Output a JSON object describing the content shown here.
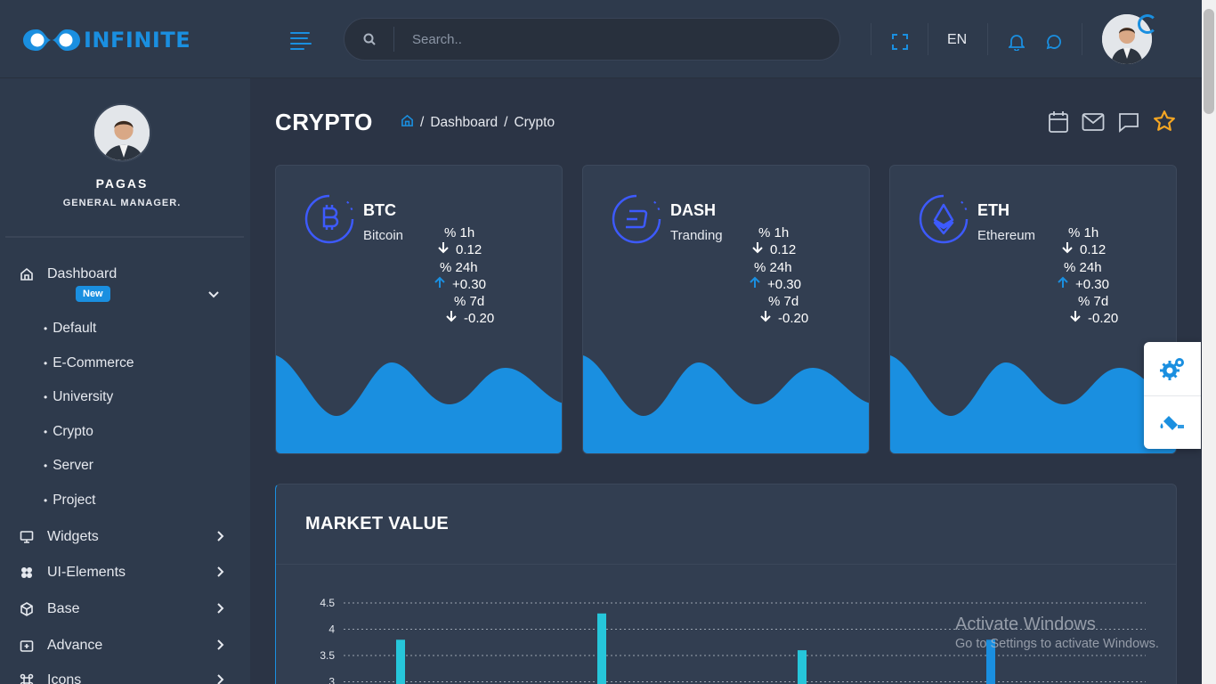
{
  "header": {
    "logo_text": "INFINITE",
    "search_placeholder": "Search..",
    "language": "EN"
  },
  "sidebar": {
    "profile": {
      "name": "PAGAS",
      "role": "GENERAL MANAGER."
    },
    "items": [
      {
        "label": "Dashboard",
        "icon": "home-icon",
        "badge": "New"
      },
      {
        "label": "Widgets",
        "icon": "monitor-icon"
      },
      {
        "label": "UI-Elements",
        "icon": "palette-icon"
      },
      {
        "label": "Base",
        "icon": "box-icon"
      },
      {
        "label": "Advance",
        "icon": "plus-square-icon"
      },
      {
        "label": "Icons",
        "icon": "command-icon"
      }
    ],
    "dashboard_sub": [
      "Default",
      "E-Commerce",
      "University",
      "Crypto",
      "Server",
      "Project"
    ]
  },
  "page": {
    "title": "CRYPTO",
    "breadcrumb": [
      "Dashboard",
      "Crypto"
    ]
  },
  "coins": [
    {
      "symbol": "BTC",
      "name": "Bitcoin",
      "icon": "bitcoin-icon",
      "stats": [
        {
          "label": "% 1h",
          "value": "0.12",
          "dir": "down"
        },
        {
          "label": "% 24h",
          "value": "+0.30",
          "dir": "up"
        },
        {
          "label": "% 7d",
          "value": "-0.20",
          "dir": "down"
        }
      ]
    },
    {
      "symbol": "DASH",
      "name": "Tranding",
      "icon": "dash-icon",
      "stats": [
        {
          "label": "% 1h",
          "value": "0.12",
          "dir": "down"
        },
        {
          "label": "% 24h",
          "value": "+0.30",
          "dir": "up"
        },
        {
          "label": "% 7d",
          "value": "-0.20",
          "dir": "down"
        }
      ]
    },
    {
      "symbol": "ETH",
      "name": "Ethereum",
      "icon": "ethereum-icon",
      "stats": [
        {
          "label": "% 1h",
          "value": "0.12",
          "dir": "down"
        },
        {
          "label": "% 24h",
          "value": "+0.30",
          "dir": "up"
        },
        {
          "label": "% 7d",
          "value": "-0.20",
          "dir": "down"
        }
      ]
    }
  ],
  "market": {
    "title": "MARKET VALUE",
    "chart_data": {
      "type": "bar",
      "y_ticks": [
        "4.5",
        "4",
        "3.5",
        "3"
      ],
      "ylim": [
        3,
        4.5
      ],
      "values": [
        3.8,
        4.3,
        3.6,
        3.8
      ],
      "bar_colors": [
        "#26c6da",
        "#26c6da",
        "#26c6da",
        "#1a8fe0"
      ],
      "grid": "dotted"
    }
  },
  "colors": {
    "accent": "#1a8fe0",
    "star": "#f5a623",
    "card": "#323e51"
  },
  "watermark": {
    "line1": "Activate Windows",
    "line2": "Go to Settings to activate Windows."
  }
}
